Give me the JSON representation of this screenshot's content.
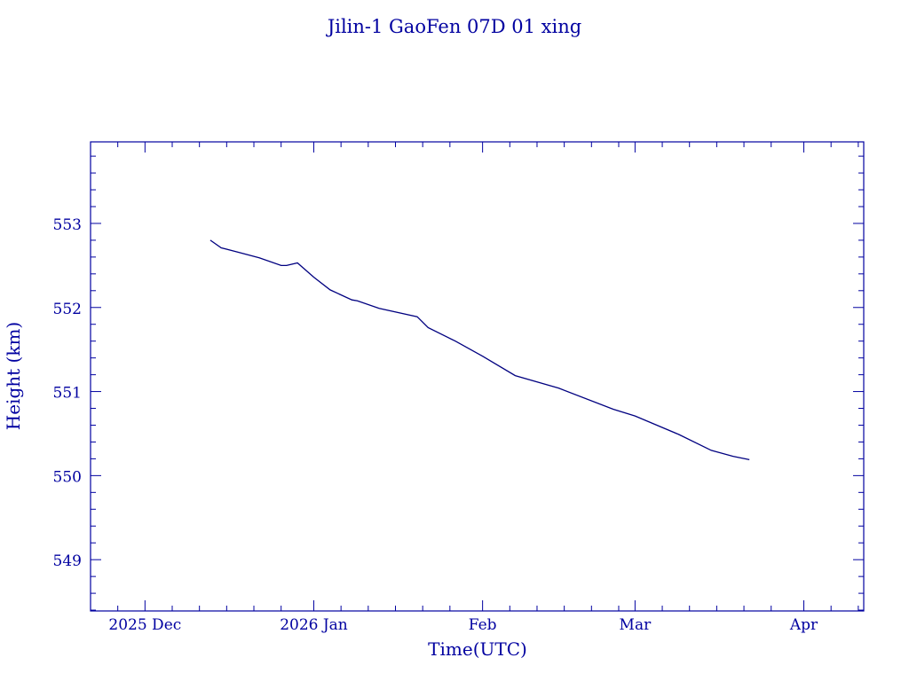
{
  "chart_data": {
    "type": "line",
    "title": "Jilin-1 GaoFen 07D 01 xing",
    "xlabel": "Time(UTC)",
    "ylabel": "Height (km)",
    "xlim": [
      "2025-11-21",
      "2026-04-12"
    ],
    "ylim": [
      548.39,
      553.97
    ],
    "grid": false,
    "x_ticks": [
      {
        "date": "2025-12-01",
        "label": "2025 Dec"
      },
      {
        "date": "2026-01-01",
        "label": "2026 Jan"
      },
      {
        "date": "2026-02-01",
        "label": "Feb"
      },
      {
        "date": "2026-03-01",
        "label": "Mar"
      },
      {
        "date": "2026-04-01",
        "label": "Apr"
      }
    ],
    "y_ticks": [
      549,
      550,
      551,
      552,
      553
    ],
    "color": "#000080",
    "series": [
      {
        "x": [
          "2025-12-13",
          "2025-12-15",
          "2025-12-18",
          "2025-12-22",
          "2025-12-26",
          "2025-12-27",
          "2025-12-29",
          "2026-01-01",
          "2026-01-04",
          "2026-01-08",
          "2026-01-09",
          "2026-01-13",
          "2026-01-20",
          "2026-01-22",
          "2026-01-27",
          "2026-02-01",
          "2026-02-07",
          "2026-02-15",
          "2026-02-25",
          "2026-03-01",
          "2026-03-09",
          "2026-03-15",
          "2026-03-19",
          "2026-03-22"
        ],
        "y": [
          552.8,
          552.71,
          552.66,
          552.59,
          552.5,
          552.5,
          552.53,
          552.36,
          552.21,
          552.09,
          552.08,
          551.99,
          551.89,
          551.76,
          551.6,
          551.42,
          551.19,
          551.04,
          550.79,
          550.71,
          550.49,
          550.3,
          550.23,
          550.19
        ]
      }
    ]
  }
}
